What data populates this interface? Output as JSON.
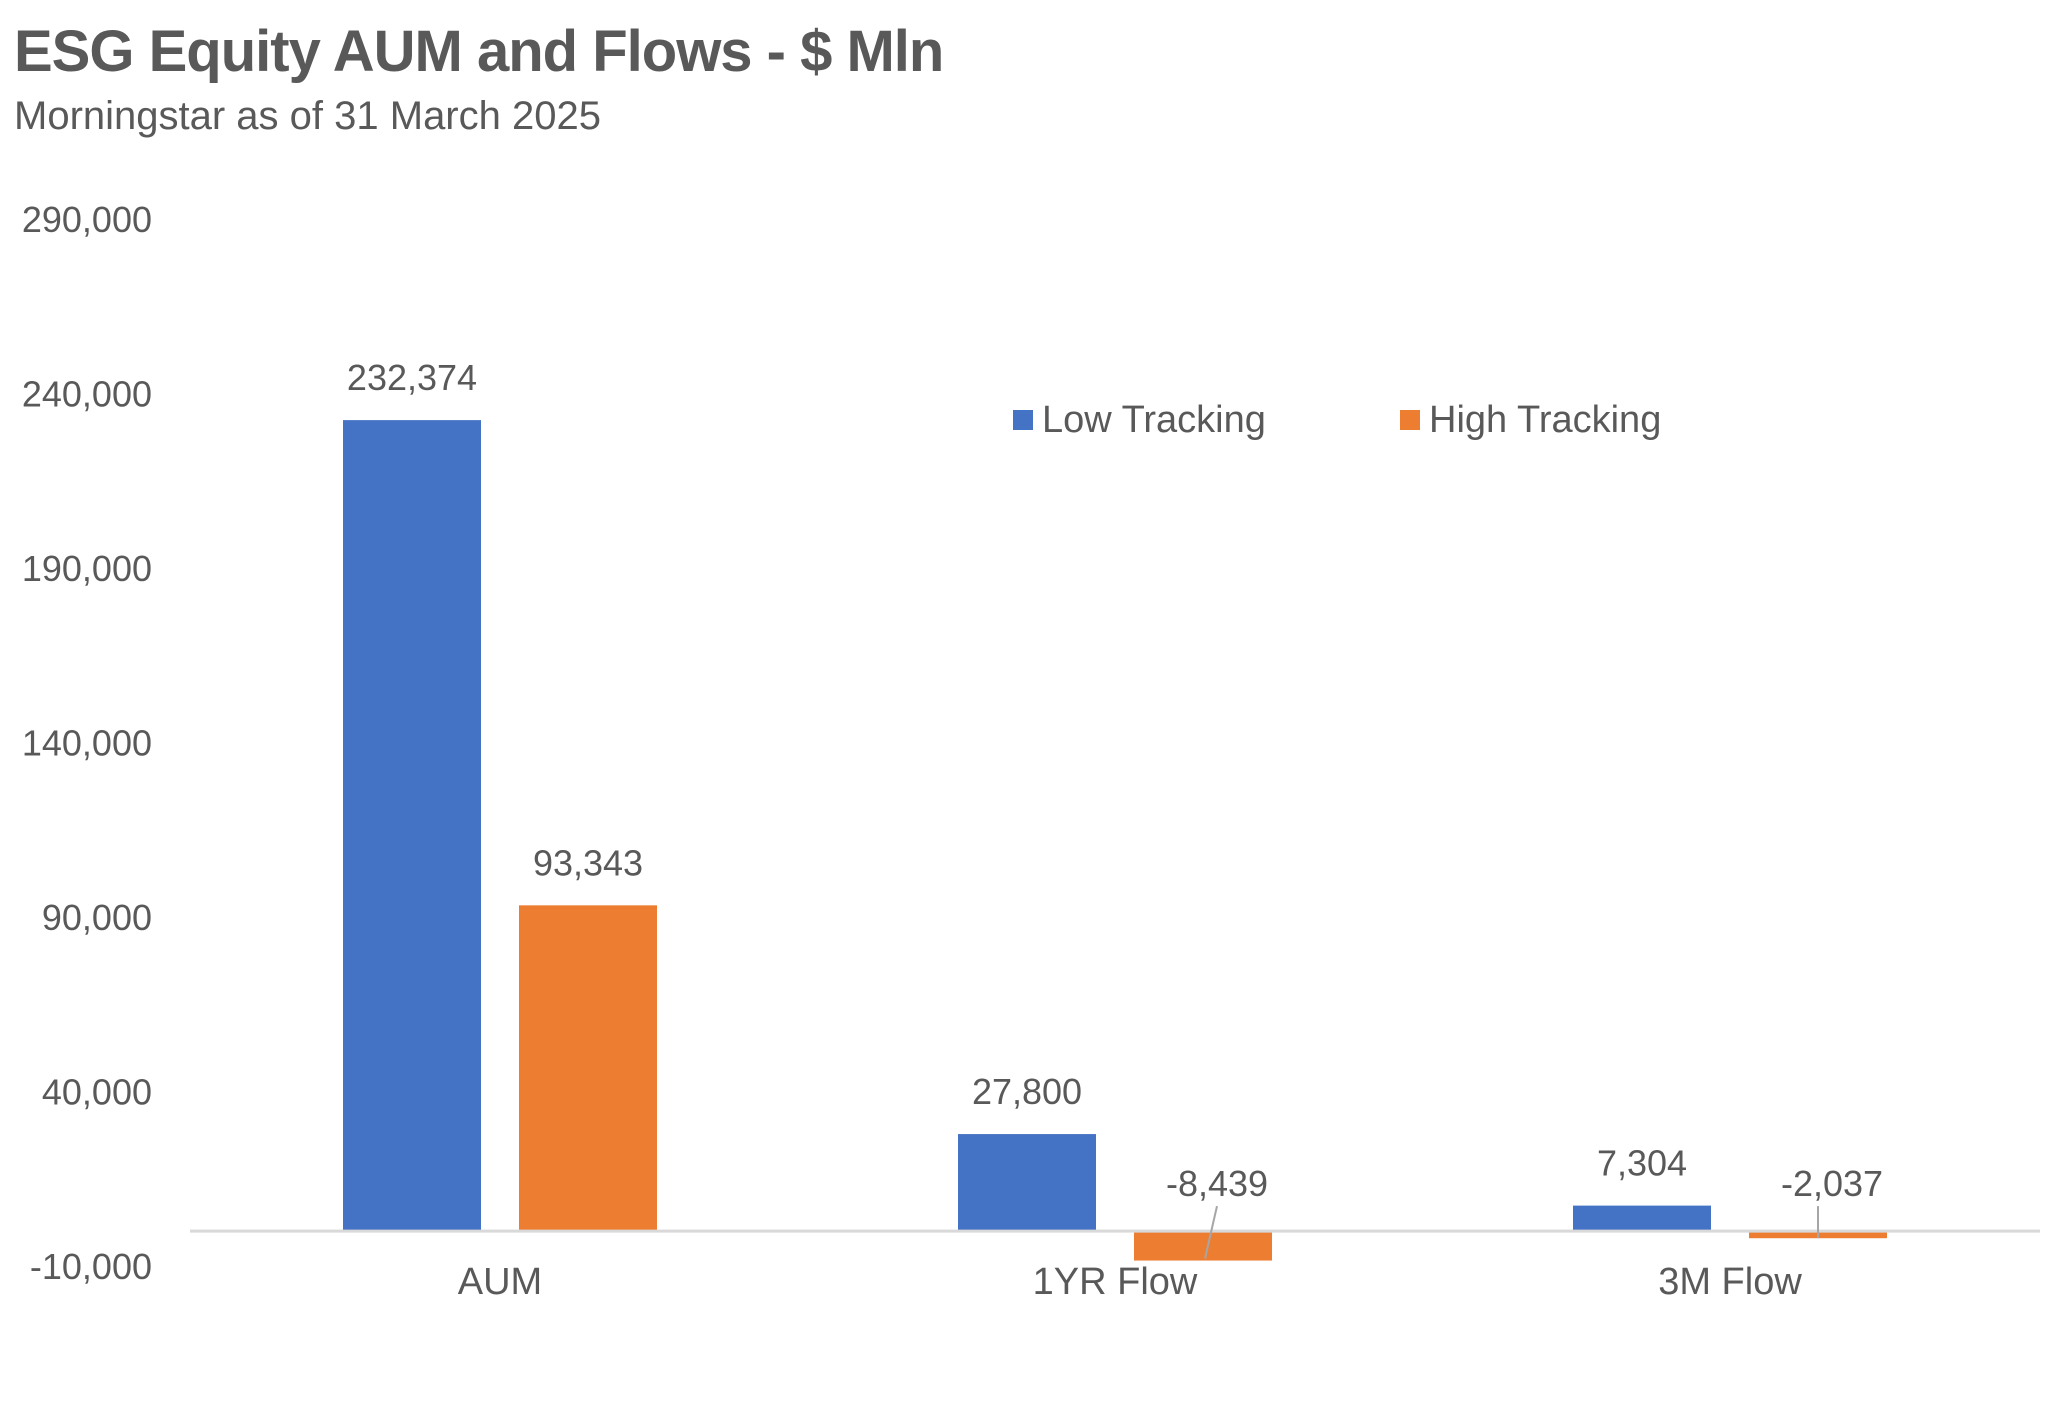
{
  "title": "ESG Equity AUM and Flows - $ Mln",
  "subtitle": "Morningstar as of 31 March 2025",
  "chart_data": {
    "type": "bar",
    "title": "ESG Equity AUM and Flows - $ Mln",
    "subtitle": "Morningstar as of 31 March 2025",
    "categories": [
      "AUM",
      "1YR Flow",
      "3M Flow"
    ],
    "series": [
      {
        "name": "Low Tracking",
        "color": "#4472C4",
        "values": [
          232374,
          27800,
          7304
        ]
      },
      {
        "name": "High Tracking",
        "color": "#ED7D31",
        "values": [
          93343,
          -8439,
          -2037
        ]
      }
    ],
    "data_labels": [
      [
        "232,374",
        "27,800",
        "7,304"
      ],
      [
        "93,343",
        "-8,439",
        "-2,037"
      ]
    ],
    "y_ticks": [
      "-10,000",
      "40,000",
      "90,000",
      "140,000",
      "190,000",
      "240,000",
      "290,000"
    ],
    "y_tick_values": [
      -10000,
      40000,
      90000,
      140000,
      190000,
      240000,
      290000
    ],
    "ylim": [
      -10000,
      290000
    ],
    "xlabel": "",
    "ylabel": "",
    "grid": false,
    "legend": "top-right"
  }
}
